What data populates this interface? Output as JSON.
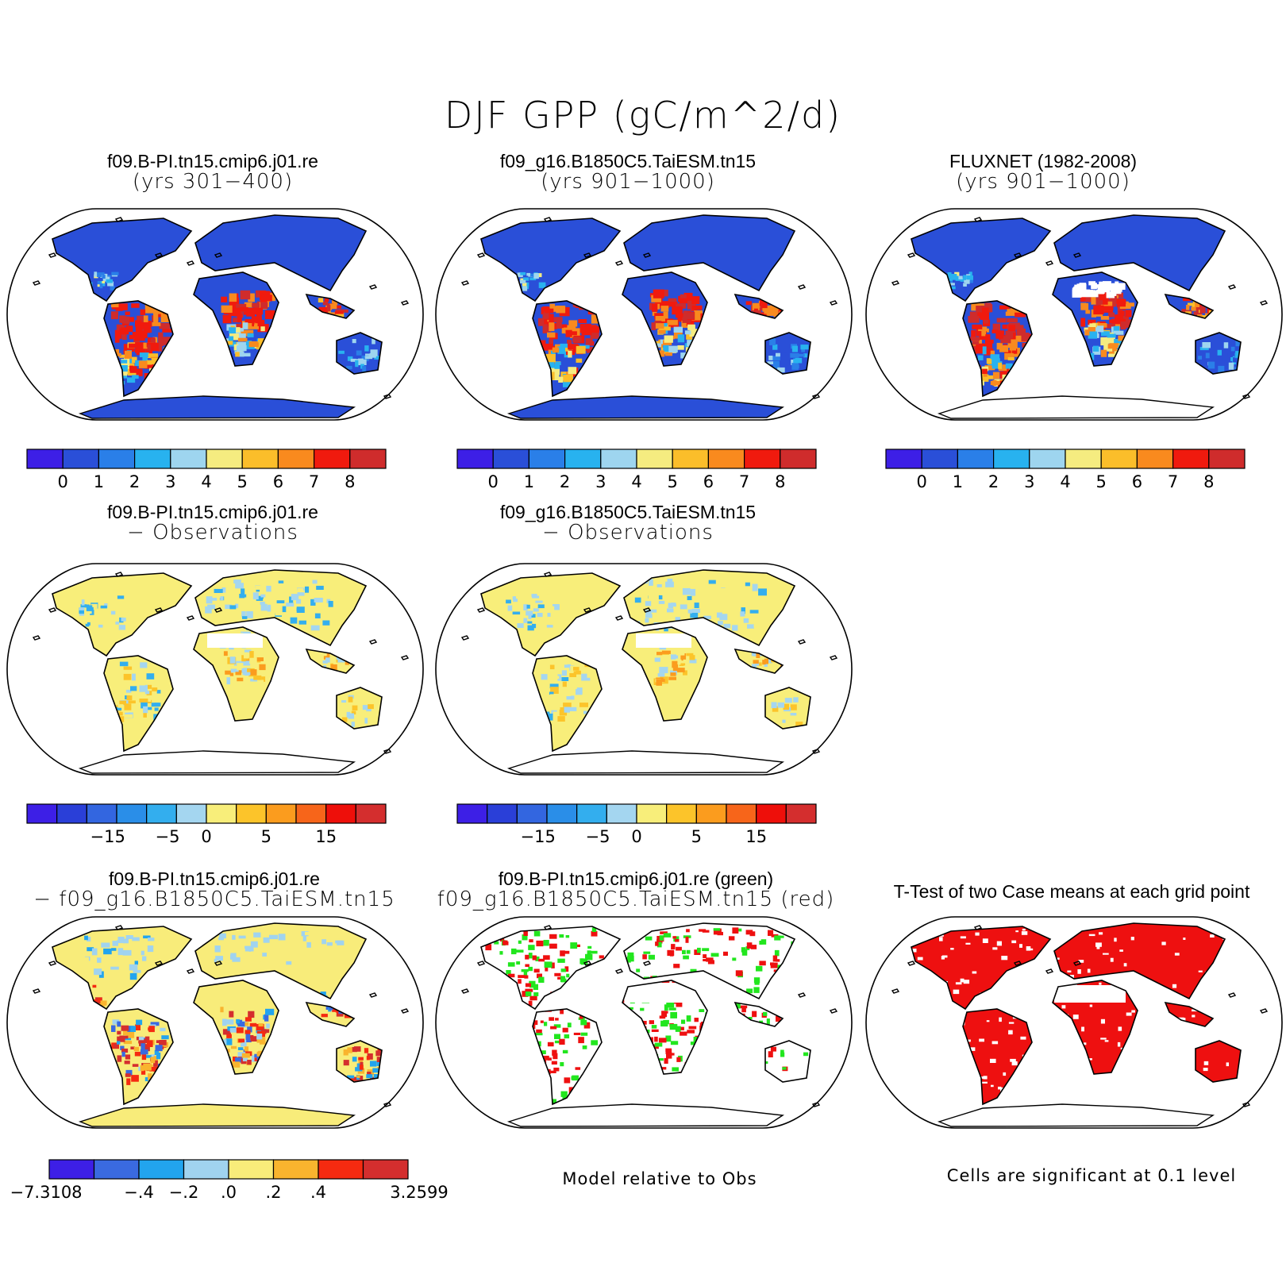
{
  "title": "DJF GPP (gC/m^2/d)",
  "colors": {
    "gpp": [
      "#3d1fe6",
      "#2a4fd8",
      "#2a7fe8",
      "#28b2ef",
      "#9ed5ef",
      "#f5ec80",
      "#fbbe2a",
      "#f98a1e",
      "#f01a0e",
      "#cf2c2c"
    ],
    "diff": [
      "#3d1fe6",
      "#2a3fd8",
      "#3366e0",
      "#2a8ee8",
      "#33aeee",
      "#a4d6f0",
      "#f8ee7a",
      "#fcc42a",
      "#fb9c1e",
      "#f7651a",
      "#ee0f0a",
      "#d42e2e"
    ],
    "reldiff": [
      "#3d1fe6",
      "#3a6ae0",
      "#22a4ee",
      "#a0d3ef",
      "#f8ec7a",
      "#f9b42e",
      "#f52a10",
      "#d42e2e"
    ],
    "green": "#22e61e",
    "red": "#ee1010"
  },
  "panels": [
    {
      "line1": "f09.B-PI.tn15.cmip6.j01.re",
      "line2": "(yrs 301−400)",
      "fill": "gpp",
      "pattern": "gpp",
      "antarctica": true
    },
    {
      "line1": "f09_g16.B1850C5.TaiESM.tn15",
      "line2": "(yrs 901−1000)",
      "fill": "gpp",
      "pattern": "gpp",
      "antarctica": true
    },
    {
      "line1": "FLUXNET (1982-2008)",
      "line2": "(yrs 901−1000)",
      "fill": "gpp",
      "pattern": "obs",
      "antarctica": false
    },
    {
      "line1": "f09.B-PI.tn15.cmip6.j01.re",
      "line2": "− Observations",
      "fill": "diff",
      "pattern": "diff",
      "antarctica": false
    },
    {
      "line1": "f09_g16.B1850C5.TaiESM.tn15",
      "line2": "− Observations",
      "fill": "diff",
      "pattern": "diff",
      "antarctica": false
    },
    {
      "line1": "f09.B-PI.tn15.cmip6.j01.re",
      "line2": "− f09_g16.B1850C5.TaiESM.tn15",
      "fill": "reldiff",
      "pattern": "rel",
      "antarctica": true
    },
    {
      "line1": "f09.B-PI.tn15.cmip6.j01.re (green)",
      "line2": "f09_g16.B1850C5.TaiESM.tn15 (red)",
      "fill": "gr",
      "pattern": "gr",
      "antarctica": false
    },
    {
      "line1": "T-Test of two Case means at each grid point",
      "line2": "",
      "fill": "tt",
      "pattern": "tt",
      "antarctica": false
    }
  ],
  "colorbars": [
    {
      "scheme": "gpp",
      "labels": [
        "0",
        "1",
        "2",
        "3",
        "4",
        "5",
        "6",
        "7",
        "8"
      ]
    },
    {
      "scheme": "gpp",
      "labels": [
        "0",
        "1",
        "2",
        "3",
        "4",
        "5",
        "6",
        "7",
        "8"
      ]
    },
    {
      "scheme": "gpp",
      "labels": [
        "0",
        "1",
        "2",
        "3",
        "4",
        "5",
        "6",
        "7",
        "8"
      ]
    },
    {
      "scheme": "diff",
      "labels": [
        "−15",
        "−5",
        "0",
        "5",
        "15"
      ]
    },
    {
      "scheme": "diff",
      "labels": [
        "−15",
        "−5",
        "0",
        "5",
        "15"
      ]
    },
    {
      "scheme": "reldiff",
      "labels": [
        "−7.3108",
        "−.4",
        "−.2",
        ".0",
        ".2",
        ".4",
        "3.2599"
      ]
    }
  ],
  "notes": {
    "model_relative": "Model relative to Obs",
    "significance": "Cells are significant at 0.1 level"
  }
}
